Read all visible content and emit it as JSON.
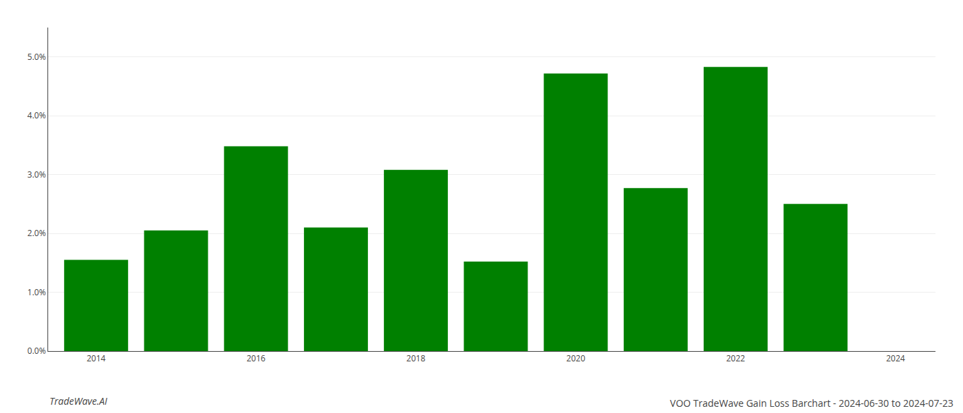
{
  "chart_data": {
    "type": "bar",
    "title": "VOO TradeWave Gain Loss Barchart - 2024-06-30 to 2024-07-23",
    "annotations": [
      "TradeWave.AI"
    ],
    "x": [
      2014,
      2015,
      2016,
      2017,
      2018,
      2019,
      2020,
      2021,
      2022,
      2023
    ],
    "values": [
      0.0155,
      0.0205,
      0.0348,
      0.021,
      0.0308,
      0.0152,
      0.0472,
      0.0277,
      0.0483,
      0.025
    ],
    "color": "#008000",
    "xlim": [
      2013.4,
      2024.5
    ],
    "xticks": [
      2014,
      2016,
      2018,
      2020,
      2022,
      2024
    ],
    "ylim": [
      0,
      0.055
    ],
    "yticks": [
      {
        "value": 0.0,
        "label": "0.0%"
      },
      {
        "value": 0.01,
        "label": "1.0%"
      },
      {
        "value": 0.02,
        "label": "2.0%"
      },
      {
        "value": 0.03,
        "label": "3.0%"
      },
      {
        "value": 0.04,
        "label": "4.0%"
      },
      {
        "value": 0.05,
        "label": "5.0%"
      }
    ],
    "grid": true
  }
}
